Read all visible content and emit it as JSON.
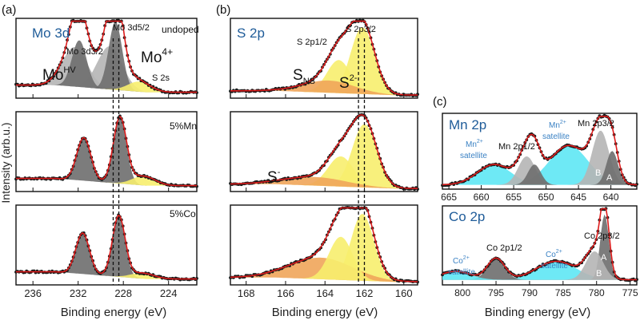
{
  "figure": {
    "y_axis_label": "Intensity (arb.u.)",
    "colors": {
      "data": "#1a1a1a",
      "fit": "#dd1c1c",
      "dark_gray": "#6e6e6e",
      "light_gray": "#b5b5b5",
      "yellow": "#f7ee6e",
      "orange": "#f0a55a",
      "cyan": "#5ee7f4",
      "title_blue": "#1f5c99",
      "annotation_blue": "#3b82c4",
      "dashed": "#111111"
    }
  },
  "chart_data": [
    {
      "id": "a",
      "panel_label": "(a)",
      "type": "line",
      "title": "Mo 3d",
      "xlabel": "Binding energy (eV)",
      "xlim": [
        237.5,
        221.5
      ],
      "xticks": [
        236,
        232,
        228,
        224
      ],
      "dashed_lines": [
        228.9,
        228.4
      ],
      "subplots": [
        {
          "name": "undoped",
          "label": "undoped",
          "annotations": [
            "Mo 3d3/2",
            "Mo 3d5/2",
            "Mo",
            "HV",
            "Mo",
            "4+",
            "S 2s"
          ],
          "components": [
            {
              "name": "Mo-HV 3d3/2",
              "color": "light_gray",
              "center": 232.3,
              "width": 1.1,
              "height": 0.55
            },
            {
              "name": "Mo4+ 3d3/2",
              "color": "dark_gray",
              "center": 231.9,
              "width": 0.65,
              "height": 0.65
            },
            {
              "name": "Mo-HV 3d5/2",
              "color": "light_gray",
              "center": 229.2,
              "width": 1.1,
              "height": 0.6
            },
            {
              "name": "Mo4+ 3d5/2",
              "color": "dark_gray",
              "center": 228.7,
              "width": 0.6,
              "height": 0.95
            },
            {
              "name": "S 2s",
              "color": "yellow",
              "center": 226.6,
              "width": 1.0,
              "height": 0.14
            }
          ]
        },
        {
          "name": "5%Mn",
          "label": "5%Mn",
          "annotations": [],
          "components": [
            {
              "name": "Mo4+ 3d3/2",
              "color": "dark_gray",
              "center": 231.5,
              "width": 0.62,
              "height": 0.6
            },
            {
              "name": "Mo4+ 3d5/2",
              "color": "dark_gray",
              "center": 228.3,
              "width": 0.58,
              "height": 0.92
            },
            {
              "name": "S 2s",
              "color": "yellow",
              "center": 226.2,
              "width": 1.0,
              "height": 0.13
            }
          ]
        },
        {
          "name": "5%Co",
          "label": "5%Co",
          "annotations": [],
          "components": [
            {
              "name": "Mo4+ 3d3/2",
              "color": "dark_gray",
              "center": 231.6,
              "width": 0.6,
              "height": 0.57
            },
            {
              "name": "Mo4+ 3d5/2",
              "color": "dark_gray",
              "center": 228.4,
              "width": 0.56,
              "height": 0.85
            },
            {
              "name": "S 2s",
              "color": "yellow",
              "center": 226.3,
              "width": 1.0,
              "height": 0.08
            }
          ]
        }
      ]
    },
    {
      "id": "b",
      "panel_label": "(b)",
      "type": "line",
      "title": "S 2p",
      "xlabel": "Binding energy (eV)",
      "xlim": [
        168.8,
        159.3
      ],
      "xticks": [
        168,
        166,
        164,
        162,
        160
      ],
      "dashed_lines": [
        162.3,
        162.0
      ],
      "subplots": [
        {
          "name": "undoped",
          "label": "",
          "annotations": [
            "S 2p1/2",
            "S 2p3/2",
            "S",
            "NS",
            "S",
            "2-"
          ],
          "components": [
            {
              "name": "S-NS",
              "color": "orange",
              "center": 163.8,
              "width": 1.3,
              "height": 0.17
            },
            {
              "name": "S2- 2p1/2",
              "color": "yellow",
              "center": 163.3,
              "width": 0.6,
              "height": 0.46
            },
            {
              "name": "S2- 2p3/2",
              "color": "yellow",
              "center": 162.1,
              "width": 0.6,
              "height": 0.93
            }
          ]
        },
        {
          "name": "5%Mn",
          "label": "",
          "annotations": [
            "S",
            "-"
          ],
          "components": [
            {
              "name": "S-",
              "color": "orange",
              "center": 164.5,
              "width": 1.6,
              "height": 0.12
            },
            {
              "name": "S2- 2p1/2",
              "color": "yellow",
              "center": 163.2,
              "width": 0.65,
              "height": 0.42
            },
            {
              "name": "S2- 2p3/2",
              "color": "yellow",
              "center": 162.0,
              "width": 0.62,
              "height": 0.88
            }
          ]
        },
        {
          "name": "5%Co",
          "label": "",
          "annotations": [],
          "components": [
            {
              "name": "S-",
              "color": "orange",
              "center": 164.2,
              "width": 1.6,
              "height": 0.3
            },
            {
              "name": "S2- 2p1/2",
              "color": "yellow",
              "center": 163.2,
              "width": 0.6,
              "height": 0.6
            },
            {
              "name": "S2- 2p3/2",
              "color": "yellow",
              "center": 162.1,
              "width": 0.58,
              "height": 0.93
            }
          ]
        }
      ]
    },
    {
      "id": "c-mn",
      "panel_label": "(c)",
      "type": "line",
      "title": "Mn 2p",
      "xlabel": "",
      "xlim": [
        666,
        636
      ],
      "xticks": [
        665,
        660,
        655,
        650,
        645,
        640
      ],
      "annotations": [
        "Mn 2p1/2",
        "Mn 2p3/2",
        "Mn",
        "2+",
        "satellite",
        "Mn",
        "2+",
        "satellite"
      ],
      "peak_letters": [
        "B",
        "A"
      ],
      "components": [
        {
          "name": "Mn2+ satellite",
          "color": "cyan",
          "center": 658.0,
          "width": 2.6,
          "height": 0.3
        },
        {
          "name": "Mn 2p1/2 B",
          "color": "light_gray",
          "center": 653.0,
          "width": 1.3,
          "height": 0.42
        },
        {
          "name": "Mn 2p1/2 A",
          "color": "dark_gray",
          "center": 651.8,
          "width": 1.0,
          "height": 0.3
        },
        {
          "name": "Mn2+ satellite",
          "color": "cyan",
          "center": 646.5,
          "width": 3.0,
          "height": 0.58
        },
        {
          "name": "Mn 2p3/2 B",
          "color": "light_gray",
          "center": 641.6,
          "width": 1.3,
          "height": 0.8
        },
        {
          "name": "Mn 2p3/2 A",
          "color": "dark_gray",
          "center": 639.8,
          "width": 0.9,
          "height": 0.5
        }
      ]
    },
    {
      "id": "c-co",
      "panel_label": "",
      "type": "line",
      "title": "Co 2p",
      "xlabel": "Binding energy (eV)",
      "xlim": [
        803,
        774
      ],
      "xticks": [
        800,
        795,
        790,
        785,
        780,
        775
      ],
      "annotations": [
        "Co 2p1/2",
        "Co 2p3/2",
        "Co",
        "2+",
        "satellite",
        "Co",
        "2+",
        "satellite"
      ],
      "peak_letters": [
        "B",
        "A"
      ],
      "components": [
        {
          "name": "Co2+ satellite",
          "color": "cyan",
          "center": 801.0,
          "width": 2.2,
          "height": 0.12
        },
        {
          "name": "Co 2p1/2",
          "color": "dark_gray",
          "center": 795.0,
          "width": 1.3,
          "height": 0.3
        },
        {
          "name": "Co2+ satellite",
          "color": "cyan",
          "center": 786.0,
          "width": 3.0,
          "height": 0.26
        },
        {
          "name": "Co 2p3/2 B",
          "color": "light_gray",
          "center": 780.3,
          "width": 1.3,
          "height": 0.4
        },
        {
          "name": "Co 2p3/2 A",
          "color": "dark_gray",
          "center": 778.8,
          "width": 0.65,
          "height": 0.92
        }
      ]
    }
  ]
}
